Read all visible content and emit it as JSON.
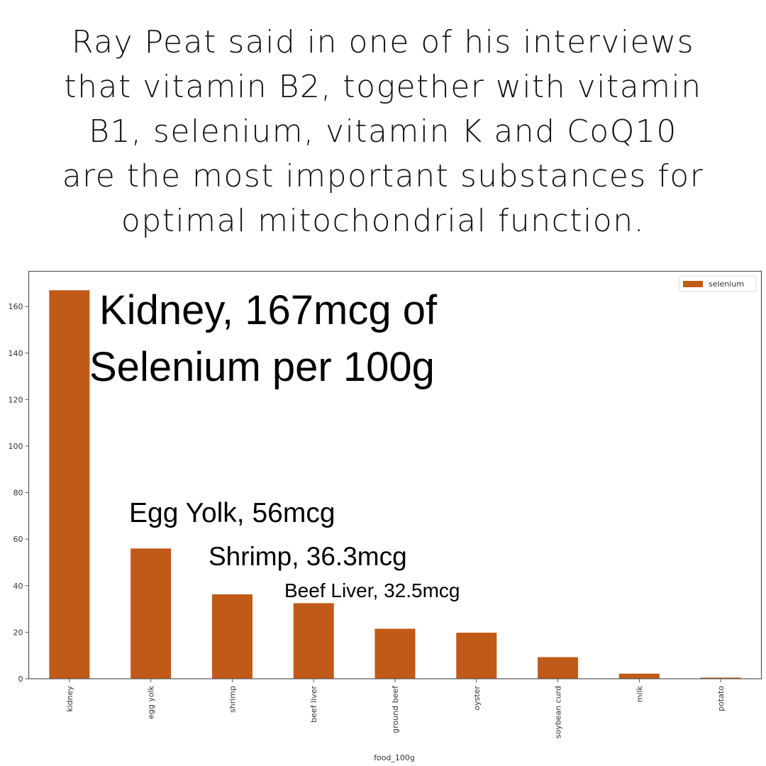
{
  "headline": {
    "lines": [
      "Ray Peat said in one of his interviews",
      "that vitamin B2, together with vitamin",
      "B1, selenium, vitamin K and CoQ10",
      "are the most important substances for",
      "optimal mitochondrial function."
    ]
  },
  "colors": {
    "bar": "#c05a18",
    "axis": "#555555",
    "text": "#000000"
  },
  "chart_data": {
    "type": "bar",
    "title": "",
    "xlabel": "food_100g",
    "ylabel": "",
    "categories": [
      "kidney",
      "egg yolk",
      "shrimp",
      "beef liver",
      "ground beef",
      "oyster",
      "soybean curd",
      "milk",
      "potato"
    ],
    "series": [
      {
        "name": "selenium",
        "values": [
          167,
          56,
          36.3,
          32.5,
          21.5,
          19.8,
          9.3,
          2.2,
          0.5
        ]
      }
    ],
    "ylim": [
      0,
      175
    ],
    "yticks": [
      0,
      20,
      40,
      60,
      80,
      100,
      120,
      140,
      160
    ],
    "grid": false,
    "legend": {
      "position": "upper right",
      "entries": [
        "selenium"
      ]
    },
    "annotations": [
      {
        "lines": [
          "Kidney, 167mcg of",
          "Selenium per 100g"
        ]
      },
      {
        "lines": [
          "Egg Yolk, 56mcg"
        ]
      },
      {
        "lines": [
          "Shrimp, 36.3mcg"
        ]
      },
      {
        "lines": [
          "Beef Liver, 32.5mcg"
        ]
      }
    ]
  }
}
